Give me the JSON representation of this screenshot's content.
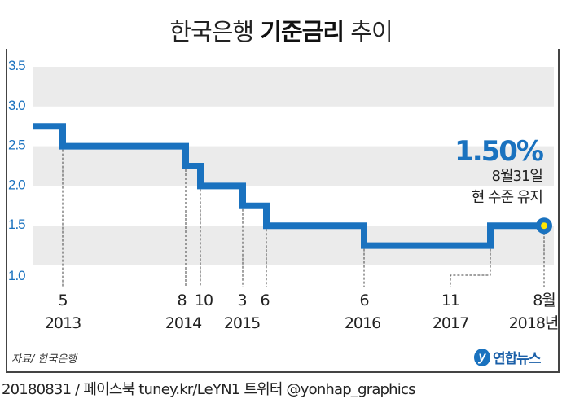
{
  "title": {
    "normal_1": "한국은행 ",
    "bold": "기준금리",
    "normal_2": " 추이"
  },
  "callout": {
    "value": "1.50%",
    "date": "8월31일",
    "note": "현 수준 유지"
  },
  "source": "자료/ 한국은행",
  "logo": {
    "mark": "y",
    "text": "연합뉴스"
  },
  "footer": "20180831 / 페이스북 tuney.kr/LeYN1 트위터 @yonhap_graphics",
  "colors": {
    "line": "#1a72bf",
    "band": "#ebebeb",
    "axis_label": "#1a72bf",
    "marker": "#ffe600"
  },
  "chart_data": {
    "type": "line",
    "step": true,
    "title": "한국은행 기준금리 추이",
    "ylabel": "",
    "xlabel": "",
    "ylim": [
      1.0,
      3.5
    ],
    "yticks": [
      "1.0",
      "1.5",
      "2.0",
      "2.5",
      "3.0",
      "3.5"
    ],
    "start_value": 2.75,
    "changes": [
      {
        "month": "5",
        "year": "2013",
        "value": 2.5
      },
      {
        "month": "8",
        "year": "2014",
        "value": 2.25
      },
      {
        "month": "10",
        "year": "",
        "value": 2.0
      },
      {
        "month": "3",
        "year": "2015",
        "value": 1.75
      },
      {
        "month": "6",
        "year": "",
        "value": 1.5
      },
      {
        "month": "6",
        "year": "2016",
        "value": 1.25
      },
      {
        "month": "11",
        "year": "2017",
        "value": 1.5
      },
      {
        "month": "8월",
        "year": "2018년",
        "value": 1.5
      }
    ]
  }
}
